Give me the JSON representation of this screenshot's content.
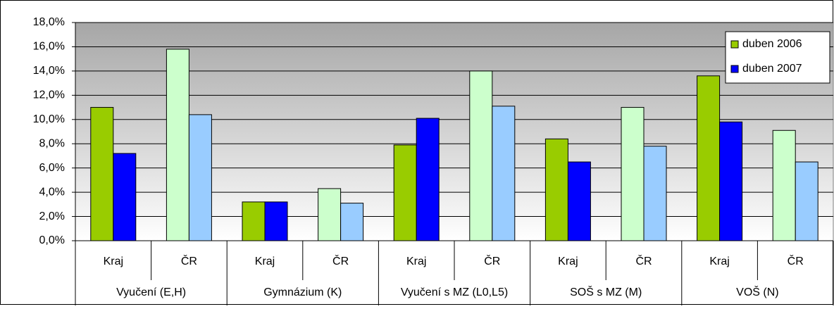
{
  "chart_data": {
    "type": "bar",
    "categories": [
      "Kraj",
      "ČR",
      "Kraj",
      "ČR",
      "Kraj",
      "ČR",
      "Kraj",
      "ČR",
      "Kraj",
      "ČR"
    ],
    "groups": [
      "Vyučení (E,H)",
      "Gymnázium (K)",
      "Vyučení s MZ (L0,L5)",
      "SOŠ s MZ (M)",
      "VOŠ (N)"
    ],
    "series": [
      {
        "name": "duben 2006",
        "color": "#99cc00",
        "values": [
          11.0,
          15.8,
          3.2,
          4.3,
          7.9,
          14.0,
          8.4,
          11.0,
          13.6,
          9.1
        ],
        "point_colors": [
          "#99cc00",
          "#ccffcc",
          "#99cc00",
          "#ccffcc",
          "#99cc00",
          "#ccffcc",
          "#99cc00",
          "#ccffcc",
          "#99cc00",
          "#ccffcc"
        ]
      },
      {
        "name": "duben 2007",
        "color": "#0000ff",
        "values": [
          7.2,
          10.4,
          3.2,
          3.1,
          10.1,
          11.1,
          6.5,
          7.8,
          9.8,
          6.5
        ],
        "point_colors": [
          "#0000ff",
          "#99ccff",
          "#0000ff",
          "#99ccff",
          "#0000ff",
          "#99ccff",
          "#0000ff",
          "#99ccff",
          "#0000ff",
          "#99ccff"
        ]
      }
    ],
    "ylim": [
      0,
      18
    ],
    "yticks": [
      {
        "value": 0,
        "label": "0,0%"
      },
      {
        "value": 2,
        "label": "2,0%"
      },
      {
        "value": 4,
        "label": "4,0%"
      },
      {
        "value": 6,
        "label": "6,0%"
      },
      {
        "value": 8,
        "label": "8,0%"
      },
      {
        "value": 10,
        "label": "10,0%"
      },
      {
        "value": 12,
        "label": "12,0%"
      },
      {
        "value": 14,
        "label": "14,0%"
      },
      {
        "value": 16,
        "label": "16,0%"
      },
      {
        "value": 18,
        "label": "18,0%"
      }
    ],
    "grid": true,
    "legend": "top-right"
  }
}
